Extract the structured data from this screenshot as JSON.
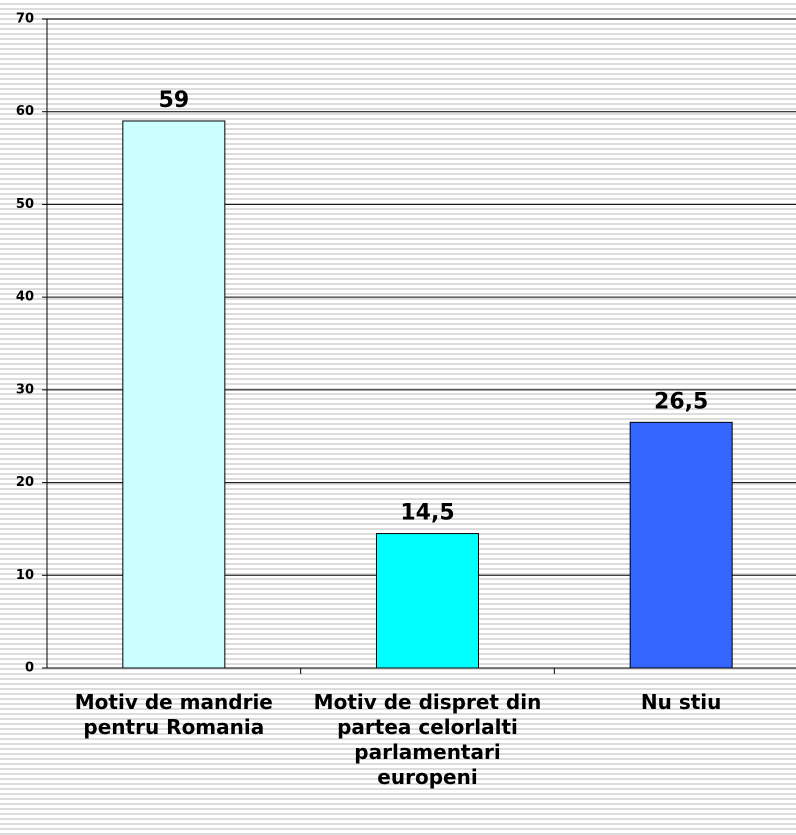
{
  "chart_data": {
    "type": "bar",
    "categories": [
      "Motiv de mandrie pentru Romania",
      "Motiv de dispret din partea celorlalti parlamentari europeni",
      "Nu stiu"
    ],
    "values": [
      59,
      14.5,
      26.5
    ],
    "value_labels": [
      "59",
      "14,5",
      "26,5"
    ],
    "colors": [
      "#ccffff",
      "#00ffff",
      "#3366ff"
    ],
    "ylim": [
      0,
      70
    ],
    "yticks": [
      0,
      10,
      20,
      30,
      40,
      50,
      60,
      70
    ],
    "grid": true
  }
}
